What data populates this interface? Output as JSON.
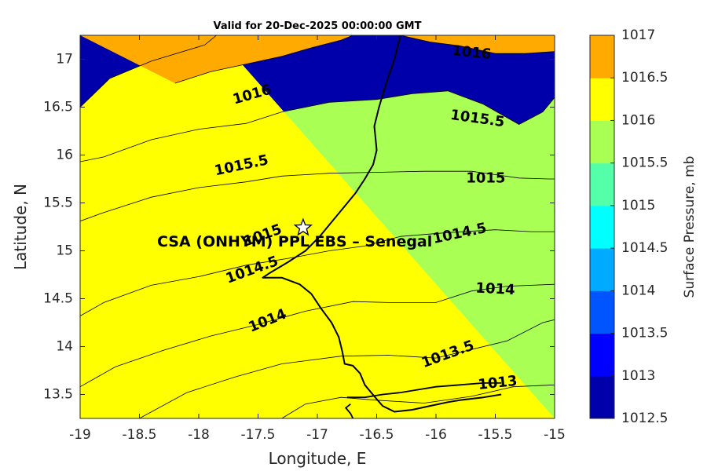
{
  "chart_data": {
    "type": "contour",
    "title": "Valid for 20-Dec-2025 00:00:00 GMT",
    "xlabel": "Longitude, E",
    "ylabel": "Latitude, N",
    "xlim": [
      -19,
      -15
    ],
    "ylim": [
      13.25,
      17.25
    ],
    "xticks": [
      -19,
      -18.5,
      -18,
      -17.5,
      -17,
      -16.5,
      -16,
      -15.5,
      -15
    ],
    "xtick_labels": [
      "-19",
      "-18.5",
      "-18",
      "-17.5",
      "-17",
      "-16.5",
      "-16",
      "-15.5",
      "-15"
    ],
    "yticks": [
      13.5,
      14,
      14.5,
      15,
      15.5,
      16,
      16.5,
      17
    ],
    "ytick_labels": [
      "13.5",
      "14",
      "14.5",
      "15",
      "15.5",
      "16",
      "16.5",
      "17"
    ],
    "colorbar": {
      "label": "Surface Pressure, mb",
      "levels": [
        1012.5,
        1013,
        1013.5,
        1014,
        1014.5,
        1015,
        1015.5,
        1016,
        1016.5,
        1017
      ],
      "tick_labels": [
        "1012.5",
        "1013",
        "1013.5",
        "1014",
        "1014.5",
        "1015",
        "1015.5",
        "1016",
        "1016.5",
        "1017"
      ],
      "colors": [
        "#0000aa",
        "#0000ff",
        "#0055ff",
        "#00aaff",
        "#00ffff",
        "#55ffaa",
        "#aaff55",
        "#ffff00",
        "#ffaa00",
        "#ff5500"
      ]
    },
    "contours": [
      {
        "level": 1013,
        "label": "1013",
        "points": [
          [
            -17.3,
            13.25
          ],
          [
            -17.1,
            13.4
          ],
          [
            -16.8,
            13.47
          ],
          [
            -16.5,
            13.44
          ],
          [
            -16.1,
            13.41
          ],
          [
            -15.7,
            13.48
          ],
          [
            -15.35,
            13.58
          ],
          [
            -15,
            13.6
          ]
        ]
      },
      {
        "level": 1013.5,
        "label": "1013.5",
        "points": [
          [
            -18.5,
            13.25
          ],
          [
            -18.1,
            13.52
          ],
          [
            -17.7,
            13.68
          ],
          [
            -17.3,
            13.82
          ],
          [
            -16.8,
            13.9
          ],
          [
            -16.4,
            13.91
          ],
          [
            -16,
            13.88
          ],
          [
            -15.7,
            13.97
          ],
          [
            -15.4,
            14.06
          ],
          [
            -15.1,
            14.25
          ],
          [
            -15,
            14.28
          ]
        ]
      },
      {
        "level": 1014,
        "label": "1014",
        "points": [
          [
            -19,
            13.58
          ],
          [
            -18.7,
            13.79
          ],
          [
            -18.3,
            13.96
          ],
          [
            -17.9,
            14.11
          ],
          [
            -17.5,
            14.23
          ],
          [
            -17.1,
            14.37
          ],
          [
            -16.7,
            14.47
          ],
          [
            -16.4,
            14.46
          ],
          [
            -16,
            14.46
          ],
          [
            -15.7,
            14.58
          ],
          [
            -15.4,
            14.63
          ],
          [
            -15,
            14.65
          ]
        ]
      },
      {
        "level": 1014.5,
        "label": "1014.5",
        "points": [
          [
            -19,
            14.32
          ],
          [
            -18.8,
            14.46
          ],
          [
            -18.4,
            14.64
          ],
          [
            -18,
            14.73
          ],
          [
            -17.6,
            14.85
          ],
          [
            -17.2,
            14.93
          ],
          [
            -16.9,
            15.0
          ],
          [
            -16.6,
            15.05
          ],
          [
            -16.3,
            15.15
          ],
          [
            -15.9,
            15.19
          ],
          [
            -15.5,
            15.22
          ],
          [
            -15.2,
            15.2
          ],
          [
            -15,
            15.2
          ]
        ]
      },
      {
        "level": 1015,
        "label": "1015",
        "points": [
          [
            -19,
            15.31
          ],
          [
            -18.8,
            15.4
          ],
          [
            -18.4,
            15.56
          ],
          [
            -18,
            15.66
          ],
          [
            -17.6,
            15.72
          ],
          [
            -17.3,
            15.78
          ],
          [
            -16.9,
            15.81
          ],
          [
            -16.5,
            15.82
          ],
          [
            -16.1,
            15.83
          ],
          [
            -15.7,
            15.83
          ],
          [
            -15.3,
            15.76
          ],
          [
            -15.05,
            15.75
          ],
          [
            -15,
            15.75
          ]
        ]
      },
      {
        "level": 1015.5,
        "label": "1015.5",
        "points": [
          [
            -19,
            15.93
          ],
          [
            -18.8,
            15.98
          ],
          [
            -18.4,
            16.16
          ],
          [
            -18,
            16.27
          ],
          [
            -17.6,
            16.33
          ],
          [
            -17.3,
            16.45
          ],
          [
            -16.9,
            16.55
          ],
          [
            -16.5,
            16.58
          ],
          [
            -16.2,
            16.64
          ],
          [
            -15.9,
            16.67
          ],
          [
            -15.6,
            16.53
          ],
          [
            -15.3,
            16.32
          ],
          [
            -15.1,
            16.45
          ],
          [
            -15,
            16.6
          ]
        ]
      },
      {
        "level": 1016,
        "label": "1016",
        "points": [
          [
            -19,
            16.5
          ],
          [
            -18.75,
            16.8
          ],
          [
            -18.4,
            16.98
          ],
          [
            -17.95,
            17.15
          ],
          [
            -17.85,
            17.25
          ]
        ]
      },
      {
        "level": 1016,
        "label": "1016",
        "points": [
          [
            -18.2,
            16.75
          ],
          [
            -17.9,
            16.87
          ],
          [
            -17.6,
            16.95
          ],
          [
            -17.3,
            17.03
          ],
          [
            -17.05,
            17.12
          ],
          [
            -16.8,
            17.2
          ],
          [
            -16.7,
            17.25
          ]
        ]
      },
      {
        "level": 1016,
        "label": "1016",
        "points": [
          [
            -16.3,
            17.25
          ],
          [
            -16.05,
            17.18
          ],
          [
            -15.8,
            17.14
          ],
          [
            -15.5,
            17.06
          ],
          [
            -15.25,
            17.06
          ],
          [
            -15,
            17.08
          ]
        ]
      }
    ],
    "contour_labels": [
      {
        "text": "1013",
        "x": -15.48,
        "y": 13.62,
        "angle": -6
      },
      {
        "text": "1013.5",
        "x": -15.9,
        "y": 13.92,
        "angle": -20
      },
      {
        "text": "1014",
        "x": -17.42,
        "y": 14.27,
        "angle": -22
      },
      {
        "text": "1014",
        "x": -15.5,
        "y": 14.6,
        "angle": 3
      },
      {
        "text": "1014.5",
        "x": -17.55,
        "y": 14.8,
        "angle": -20
      },
      {
        "text": "1014.5",
        "x": -15.8,
        "y": 15.18,
        "angle": -12
      },
      {
        "text": "1015",
        "x": -17.46,
        "y": 15.16,
        "angle": -20
      },
      {
        "text": "1015",
        "x": -15.58,
        "y": 15.76,
        "angle": 0
      },
      {
        "text": "1015.5",
        "x": -17.64,
        "y": 15.89,
        "angle": -12
      },
      {
        "text": "1015.5",
        "x": -15.65,
        "y": 16.38,
        "angle": 8
      },
      {
        "text": "1016",
        "x": -17.55,
        "y": 16.63,
        "angle": -16
      },
      {
        "text": "1016",
        "x": -15.7,
        "y": 17.07,
        "angle": 6
      }
    ],
    "site": {
      "name": "CSA (ONHYM) PPL EBS  – Senegal",
      "marker": "star",
      "x": -17.12,
      "y": 15.24
    },
    "coastline": [
      [
        -16.3,
        17.25
      ],
      [
        -16.35,
        17.0
      ],
      [
        -16.42,
        16.75
      ],
      [
        -16.48,
        16.5
      ],
      [
        -16.52,
        16.3
      ],
      [
        -16.51,
        16.18
      ],
      [
        -16.5,
        16.05
      ],
      [
        -16.53,
        15.9
      ],
      [
        -16.6,
        15.75
      ],
      [
        -16.68,
        15.6
      ],
      [
        -16.78,
        15.45
      ],
      [
        -16.88,
        15.3
      ],
      [
        -16.98,
        15.15
      ],
      [
        -17.1,
        15.0
      ],
      [
        -17.25,
        14.88
      ],
      [
        -17.4,
        14.77
      ],
      [
        -17.46,
        14.72
      ],
      [
        -17.3,
        14.72
      ],
      [
        -17.15,
        14.65
      ],
      [
        -17.05,
        14.55
      ],
      [
        -16.97,
        14.4
      ],
      [
        -16.88,
        14.25
      ],
      [
        -16.82,
        14.1
      ],
      [
        -16.79,
        13.95
      ],
      [
        -16.77,
        13.82
      ],
      [
        -16.7,
        13.8
      ],
      [
        -16.64,
        13.72
      ],
      [
        -16.6,
        13.6
      ],
      [
        -16.52,
        13.48
      ],
      [
        -16.45,
        13.38
      ],
      [
        -16.35,
        13.32
      ],
      [
        -16.2,
        13.34
      ],
      [
        -16.05,
        13.38
      ],
      [
        -15.9,
        13.42
      ],
      [
        -15.8,
        13.44
      ],
      [
        -15.6,
        13.47
      ],
      [
        -15.45,
        13.5
      ]
    ],
    "gambia_border": [
      [
        -16.75,
        13.47
      ],
      [
        -16.6,
        13.47
      ],
      [
        -16.45,
        13.5
      ],
      [
        -16.3,
        13.52
      ],
      [
        -16.15,
        13.55
      ],
      [
        -16.0,
        13.58
      ],
      [
        -15.8,
        13.6
      ],
      [
        -15.6,
        13.62
      ],
      [
        -15.45,
        13.62
      ]
    ],
    "casamance_border": [
      [
        -16.7,
        13.25
      ],
      [
        -16.72,
        13.3
      ],
      [
        -16.76,
        13.36
      ],
      [
        -16.72,
        13.4
      ]
    ]
  }
}
